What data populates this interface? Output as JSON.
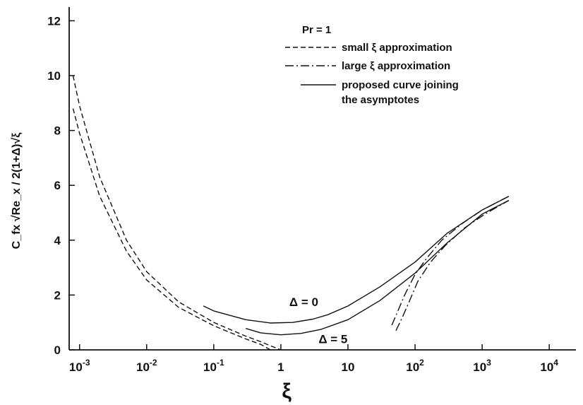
{
  "chart_data": {
    "type": "line",
    "title": "",
    "xlabel": "ξ",
    "ylabel": "C_fx √Re_x / 2(1+Δ)√ξ",
    "xscale": "log",
    "xlim": [
      0.0007,
      25000
    ],
    "ylim": [
      0,
      12.5
    ],
    "x_ticks": [
      {
        "value": 0.001,
        "base": "10",
        "exp": "-3"
      },
      {
        "value": 0.01,
        "base": "10",
        "exp": "-2"
      },
      {
        "value": 0.1,
        "base": "10",
        "exp": "-1"
      },
      {
        "value": 1,
        "base": "1",
        "exp": ""
      },
      {
        "value": 10,
        "base": "10",
        "exp": ""
      },
      {
        "value": 100,
        "base": "10",
        "exp": "2"
      },
      {
        "value": 1000,
        "base": "10",
        "exp": "3"
      },
      {
        "value": 10000,
        "base": "10",
        "exp": "4"
      }
    ],
    "y_ticks": [
      0,
      2,
      4,
      6,
      8,
      10,
      12
    ],
    "grid": false,
    "legend_position": "top-right",
    "legend": {
      "header": "Pr = 1",
      "entries": [
        {
          "label": "small ξ approximation",
          "style": "dashed"
        },
        {
          "label": "large ξ approximation",
          "style": "dashdot"
        },
        {
          "label_lines": [
            "proposed curve joining",
            "the asymptotes"
          ],
          "style": "solid"
        }
      ]
    },
    "annotations": [
      {
        "text": "Δ = 0",
        "x": 2.2,
        "y": 1.6
      },
      {
        "text": "Δ = 5",
        "x": 6,
        "y": 0.25
      }
    ],
    "series": [
      {
        "style": "dashed",
        "x": [
          0.0008,
          0.001,
          0.002,
          0.005,
          0.01,
          0.03,
          0.1,
          0.3,
          0.5,
          0.7,
          1.0
        ],
        "y": [
          10.0,
          8.9,
          6.3,
          4.0,
          2.85,
          1.75,
          1.0,
          0.5,
          0.3,
          0.15,
          0.0
        ]
      },
      {
        "style": "dashed",
        "x": [
          0.0008,
          0.001,
          0.002,
          0.005,
          0.01,
          0.03,
          0.1,
          0.3,
          0.5,
          0.7
        ],
        "y": [
          8.8,
          7.9,
          5.6,
          3.6,
          2.55,
          1.55,
          0.88,
          0.4,
          0.2,
          0.0
        ]
      },
      {
        "style": "solid",
        "x": [
          0.07,
          0.1,
          0.3,
          0.7,
          1.5,
          3,
          5,
          10,
          30,
          100,
          300,
          1000,
          2500
        ],
        "y": [
          1.6,
          1.42,
          1.1,
          0.98,
          1.0,
          1.12,
          1.28,
          1.6,
          2.3,
          3.2,
          4.25,
          5.1,
          5.6
        ]
      },
      {
        "style": "solid",
        "x": [
          0.3,
          0.5,
          1,
          2,
          4,
          10,
          30,
          100,
          300,
          1000,
          2500
        ],
        "y": [
          0.78,
          0.62,
          0.55,
          0.6,
          0.75,
          1.1,
          1.8,
          2.8,
          3.9,
          4.95,
          5.45
        ]
      },
      {
        "style": "dashdot",
        "x": [
          45,
          55,
          70,
          100,
          150,
          250,
          500,
          1000,
          2500
        ],
        "y": [
          0.9,
          1.4,
          2.0,
          2.75,
          3.35,
          4.0,
          4.6,
          5.1,
          5.6
        ]
      },
      {
        "style": "dashdot",
        "x": [
          52,
          65,
          80,
          110,
          170,
          280,
          550,
          1100,
          2500
        ],
        "y": [
          0.7,
          1.2,
          1.7,
          2.5,
          3.2,
          3.8,
          4.45,
          4.95,
          5.45
        ]
      }
    ]
  }
}
